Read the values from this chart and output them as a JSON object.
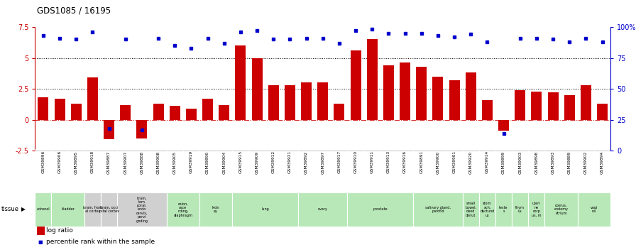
{
  "title": "GDS1085 / 16195",
  "gsm_labels": [
    "GSM39896",
    "GSM39906",
    "GSM39895",
    "GSM39918",
    "GSM39887",
    "GSM39907",
    "GSM39888",
    "GSM39908",
    "GSM39905",
    "GSM39919",
    "GSM39890",
    "GSM39904",
    "GSM39915",
    "GSM39909",
    "GSM39912",
    "GSM39921",
    "GSM39892",
    "GSM39897",
    "GSM39917",
    "GSM39910",
    "GSM39911",
    "GSM39913",
    "GSM39916",
    "GSM39891",
    "GSM39900",
    "GSM39901",
    "GSM39920",
    "GSM39914",
    "GSM39899",
    "GSM39903",
    "GSM39898",
    "GSM39893",
    "GSM39889",
    "GSM39902",
    "GSM39894"
  ],
  "log_ratio": [
    1.8,
    1.7,
    1.3,
    3.4,
    -1.6,
    1.2,
    -1.5,
    1.3,
    1.1,
    0.9,
    1.7,
    1.2,
    6.0,
    5.0,
    2.8,
    2.8,
    3.0,
    3.0,
    1.3,
    5.6,
    6.5,
    4.4,
    4.6,
    4.3,
    3.5,
    3.2,
    3.8,
    1.6,
    -0.9,
    2.4,
    2.3,
    2.2,
    2.0,
    2.8,
    1.3
  ],
  "percentile": [
    93,
    91,
    90,
    96,
    18,
    90,
    17,
    91,
    85,
    83,
    91,
    87,
    96,
    97,
    90,
    90,
    91,
    91,
    87,
    97,
    98,
    95,
    95,
    95,
    93,
    92,
    94,
    88,
    14,
    91,
    91,
    90,
    88,
    91,
    88
  ],
  "tissue_groups": [
    {
      "label": "adrenal",
      "start": 0,
      "end": 1,
      "color": "#b8e8b8"
    },
    {
      "label": "bladder",
      "start": 1,
      "end": 3,
      "color": "#b8e8b8"
    },
    {
      "label": "brain, front\nal cortex",
      "start": 3,
      "end": 4,
      "color": "#d0d0d0"
    },
    {
      "label": "brain, occi\npital cortex",
      "start": 4,
      "end": 5,
      "color": "#d0d0d0"
    },
    {
      "label": "brain,\ntem\nporal,\nendo\ncervix,\npervi\ngnding",
      "start": 5,
      "end": 8,
      "color": "#d0d0d0"
    },
    {
      "label": "colon,\nasce\nnding,\ndiaphragm",
      "start": 8,
      "end": 10,
      "color": "#b8e8b8"
    },
    {
      "label": "kidn\ney",
      "start": 10,
      "end": 12,
      "color": "#b8e8b8"
    },
    {
      "label": "lung",
      "start": 12,
      "end": 16,
      "color": "#b8e8b8"
    },
    {
      "label": "ovary",
      "start": 16,
      "end": 19,
      "color": "#b8e8b8"
    },
    {
      "label": "prostate",
      "start": 19,
      "end": 23,
      "color": "#b8e8b8"
    },
    {
      "label": "salivary gland,\nparotid",
      "start": 23,
      "end": 26,
      "color": "#b8e8b8"
    },
    {
      "label": "small\nbowel,\nduod\ndenut",
      "start": 26,
      "end": 27,
      "color": "#b8e8b8"
    },
    {
      "label": "stom\nach,\nductund\nus",
      "start": 27,
      "end": 28,
      "color": "#b8e8b8"
    },
    {
      "label": "teste\ns",
      "start": 28,
      "end": 29,
      "color": "#b8e8b8"
    },
    {
      "label": "thym\nus",
      "start": 29,
      "end": 30,
      "color": "#b8e8b8"
    },
    {
      "label": "uteri\nne\ncorp\nus, m",
      "start": 30,
      "end": 31,
      "color": "#b8e8b8"
    },
    {
      "label": "uterus,\nendomy\netrium",
      "start": 31,
      "end": 33,
      "color": "#b8e8b8"
    },
    {
      "label": "vagi\nna",
      "start": 33,
      "end": 35,
      "color": "#b8e8b8"
    }
  ],
  "bar_color": "#cc0000",
  "dot_color": "#0000cc",
  "ylim_left": [
    -2.5,
    7.5
  ],
  "ylim_right": [
    0,
    100
  ],
  "background_color": "#ffffff",
  "gsm_bg_color": "#d8d8d8",
  "tissue_label_color": "#000000"
}
